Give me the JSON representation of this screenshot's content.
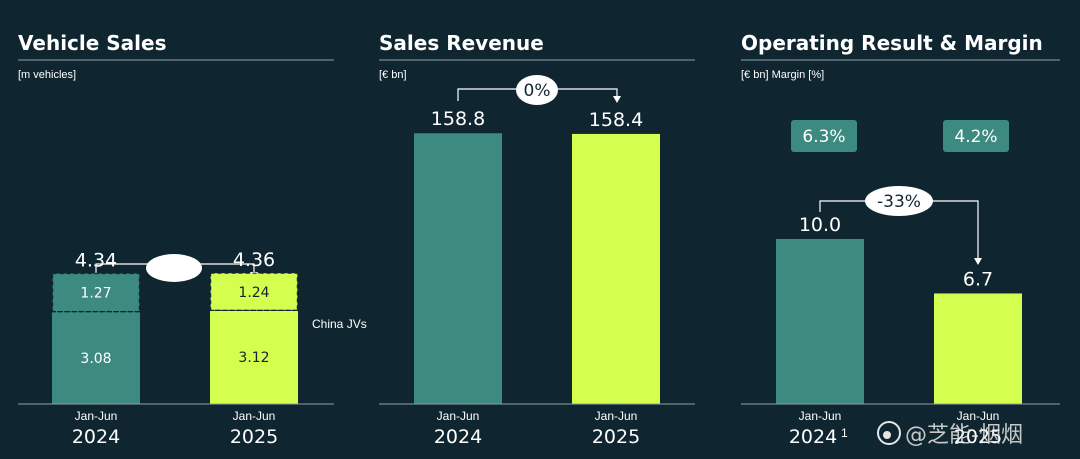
{
  "colors": {
    "background": "#0f2630",
    "teal": "#3c8a80",
    "lime": "#d4ff4f",
    "text": "#ffffff"
  },
  "watermark": "@芝能-烟烟",
  "chart_data": [
    {
      "type": "bar",
      "stacked": true,
      "title": "Vehicle Sales",
      "unit": "[m vehicles]",
      "categories": [
        {
          "period": "Jan-Jun",
          "year": "2024"
        },
        {
          "period": "Jan-Jun",
          "year": "2025"
        }
      ],
      "series": [
        {
          "values": [
            3.08,
            3.12
          ]
        },
        {
          "name": "China JVs",
          "values": [
            1.27,
            1.24
          ]
        }
      ],
      "totals": [
        "4.34",
        "4.36"
      ],
      "segment_labels": [
        [
          "3.08",
          "1.27"
        ],
        [
          "3.12",
          "1.24"
        ]
      ],
      "change_label": ""
    },
    {
      "type": "bar",
      "title": "Sales Revenue",
      "unit": "[€ bn]",
      "categories": [
        {
          "period": "Jan-Jun",
          "year": "2024"
        },
        {
          "period": "Jan-Jun",
          "year": "2025"
        }
      ],
      "values": [
        158.8,
        158.4
      ],
      "value_labels": [
        "158.8",
        "158.4"
      ],
      "change_label": "0%"
    },
    {
      "type": "bar",
      "title": "Operating Result & Margin",
      "unit": "[€ bn] Margin [%]",
      "categories": [
        {
          "period": "Jan-Jun",
          "year": "2024",
          "footnote": "1"
        },
        {
          "period": "Jan-Jun",
          "year": "2025"
        }
      ],
      "values": [
        10.0,
        6.7
      ],
      "value_labels": [
        "10.0",
        "6.7"
      ],
      "margins": [
        "6.3%",
        "4.2%"
      ],
      "change_label": "-33%"
    }
  ]
}
